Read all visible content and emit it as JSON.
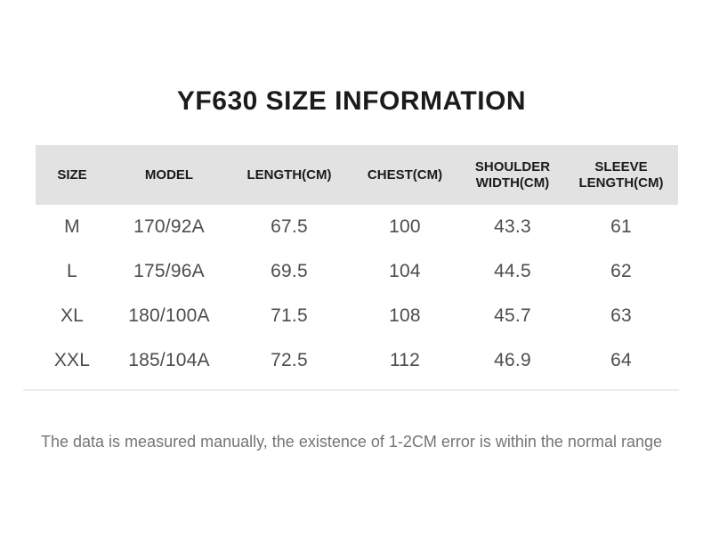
{
  "title": "YF630 SIZE INFORMATION",
  "footnote": "The data is measured manually, the existence of 1-2CM error is within the normal range",
  "chart_data": {
    "type": "table",
    "title": "YF630 SIZE INFORMATION",
    "columns": [
      "SIZE",
      "MODEL",
      "LENGTH(CM)",
      "CHEST(CM)",
      "SHOULDER WIDTH(CM)",
      "SLEEVE LENGTH(CM)"
    ],
    "rows": [
      [
        "M",
        "170/92A",
        "67.5",
        "100",
        "43.3",
        "61"
      ],
      [
        "L",
        "175/96A",
        "69.5",
        "104",
        "44.5",
        "62"
      ],
      [
        "XL",
        "180/100A",
        "71.5",
        "108",
        "45.7",
        "63"
      ],
      [
        "XXL",
        "185/104A",
        "72.5",
        "112",
        "46.9",
        "64"
      ]
    ],
    "note": "The data is measured manually, the existence of 1-2CM error is within the normal range",
    "layout": {
      "header_two_line_columns": [
        "SHOULDER WIDTH(CM)",
        "SLEEVE LENGTH(CM)"
      ],
      "grid": "off",
      "row_dividers": "none"
    }
  },
  "colors": {
    "background": "#ffffff",
    "title_text": "#1d1a1a",
    "header_bg": "#e2e2e2",
    "header_text": "#1d1a1a",
    "body_text": "#4d4d4d",
    "note_text": "#757575",
    "divider": "#ececec"
  }
}
